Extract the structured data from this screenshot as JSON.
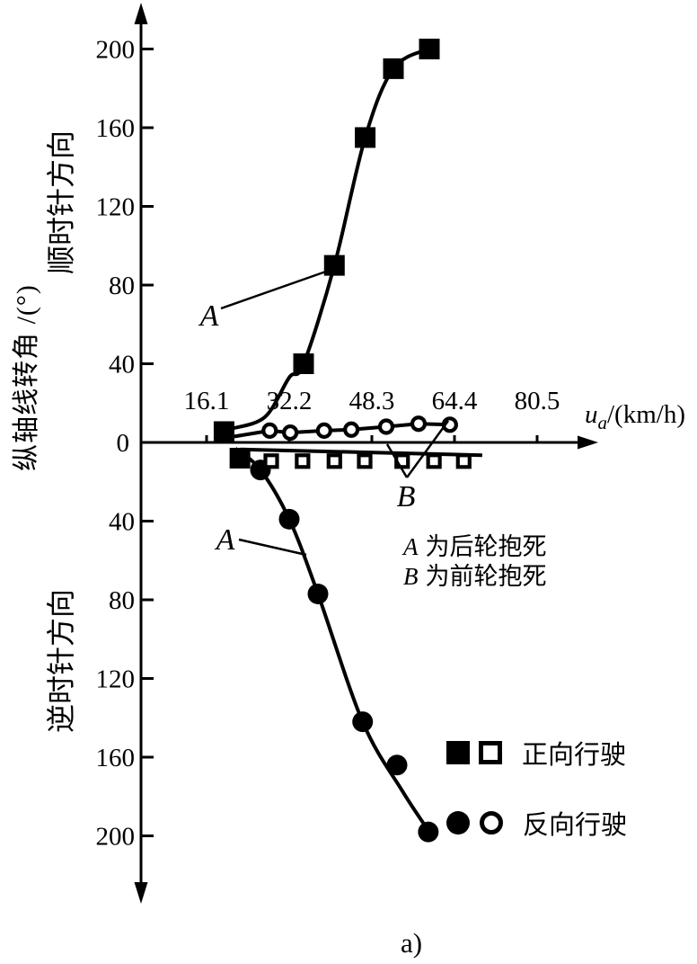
{
  "figure": {
    "caption": "a)",
    "ink": "#000000",
    "background": "#ffffff"
  },
  "y_axis": {
    "unit_label": "纵轴线转角 /(°)",
    "upper_direction_label": "顺时针方向",
    "lower_direction_label": "逆时针方向",
    "upper_ticks": [
      200,
      160,
      120,
      80,
      40
    ],
    "zero_label": "0",
    "lower_ticks": [
      40,
      80,
      120,
      160,
      200
    ]
  },
  "x_axis": {
    "label_var": "u",
    "label_sub": "a",
    "label_rest": "/(km/h)",
    "ticks": [
      16.1,
      32.2,
      48.3,
      64.4,
      80.5
    ]
  },
  "legend": {
    "rows": [
      {
        "markers": [
          "filled-square",
          "open-square"
        ],
        "label": "正向行驶"
      },
      {
        "markers": [
          "filled-circle",
          "open-circle"
        ],
        "label": "反向行驶"
      }
    ]
  },
  "notes": [
    {
      "var": "A",
      "text": "为后轮抱死"
    },
    {
      "var": "B",
      "text": "为前轮抱死"
    }
  ],
  "chart_data": {
    "type": "line",
    "title": "",
    "xlabel": "u_a/(km/h)",
    "ylabel": "纵轴线转角/(°)  (正=顺时针方向, 负=逆时针方向)",
    "x_range": [
      0,
      88
    ],
    "y_range": [
      -220,
      220
    ],
    "x_ticks": [
      16.1,
      32.2,
      48.3,
      64.4,
      80.5
    ],
    "grid": false,
    "legend_position": "lower-right",
    "series": [
      {
        "id": "forward-rear-lock",
        "curve_label": "A",
        "legend": "正向行驶",
        "marker": "filled-square",
        "points": [
          [
            19.5,
            5.5
          ],
          [
            35,
            40
          ],
          [
            41,
            90
          ],
          [
            47,
            155
          ],
          [
            52.5,
            190
          ],
          [
            59.5,
            200
          ]
        ],
        "curve": [
          [
            21,
            7
          ],
          [
            27.5,
            13
          ],
          [
            32.2,
            33
          ],
          [
            35,
            40
          ],
          [
            41,
            90
          ],
          [
            47,
            155
          ],
          [
            52.5,
            190
          ],
          [
            59.3,
            200
          ]
        ],
        "smooth": true
      },
      {
        "id": "reverse-rear-lock",
        "curve_label": "A",
        "legend": "反向行驶",
        "marker": "filled-circle",
        "points": [
          [
            26.6,
            -14
          ],
          [
            32.2,
            -39
          ],
          [
            37.8,
            -77
          ],
          [
            46.5,
            -142
          ],
          [
            53.2,
            -164
          ],
          [
            59.3,
            -198
          ]
        ],
        "curve": [
          [
            21.7,
            -3
          ],
          [
            26.6,
            -14
          ],
          [
            32.2,
            -39
          ],
          [
            37.8,
            -77
          ],
          [
            46.5,
            -142
          ],
          [
            54.2,
            -177
          ],
          [
            59.5,
            -198
          ]
        ],
        "smooth": true
      },
      {
        "id": "reverse-front-lock",
        "curve_label": "B",
        "legend": "反向行驶",
        "marker": "open-circle",
        "points": [
          [
            28.4,
            6
          ],
          [
            32.4,
            5
          ],
          [
            39,
            6
          ],
          [
            44.3,
            6.5
          ],
          [
            51.1,
            8
          ],
          [
            57.4,
            9.5
          ],
          [
            63.5,
            9
          ]
        ],
        "curve": [
          [
            21.5,
            3
          ],
          [
            28.4,
            6
          ],
          [
            32.4,
            5
          ],
          [
            39,
            6
          ],
          [
            44.3,
            6.5
          ],
          [
            51.1,
            8
          ],
          [
            57.4,
            9.5
          ],
          [
            63.5,
            9
          ]
        ],
        "smooth": false
      },
      {
        "id": "forward-front-lock",
        "curve_label": "B",
        "legend": "正向行驶",
        "marker": "open-square",
        "first_marker": "filled-square",
        "points": [
          [
            22.6,
            -8
          ],
          [
            28.7,
            -9.5
          ],
          [
            34.8,
            -9.5
          ],
          [
            41,
            -9.5
          ],
          [
            46.9,
            -9.5
          ],
          [
            54.2,
            -9.5
          ],
          [
            60.4,
            -9.5
          ],
          [
            66.2,
            -9.5
          ]
        ],
        "curve": [
          [
            22.7,
            -3.5
          ],
          [
            69.8,
            -6.5
          ]
        ],
        "smooth": false
      }
    ],
    "annotations": [
      {
        "text": "A",
        "cx": 233,
        "cy": 350,
        "lines": [
          [
            246,
            343,
            377,
            297
          ]
        ]
      },
      {
        "text": "A",
        "cx": 251,
        "cy": 599,
        "lines": [
          [
            266,
            600,
            341,
            617
          ]
        ]
      },
      {
        "text": "B",
        "cx": 452,
        "cy": 551,
        "lines": [
          [
            453,
            531,
            499,
            468
          ],
          [
            453,
            531,
            431,
            494
          ]
        ]
      }
    ]
  }
}
